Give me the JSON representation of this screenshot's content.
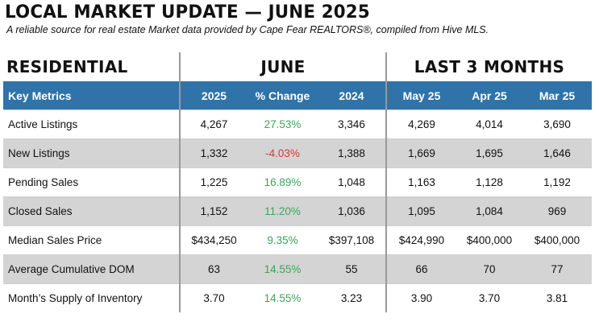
{
  "title": "LOCAL MARKET UPDATE — JUNE 2025",
  "subtitle": "A reliable source for real estate Market data provided by Cape Fear REALTORS®, compiled from Hive MLS.",
  "groups": {
    "residential": "RESIDENTIAL",
    "june": "JUNE",
    "last3": "LAST 3 MONTHS"
  },
  "columns": [
    "Key Metrics",
    "2025",
    "% Change",
    "2024",
    "May 25",
    "Apr 25",
    "Mar 25"
  ],
  "colors": {
    "header_bg": "#2f73a8",
    "positive": "#3ea35a",
    "negative": "#d43a3a",
    "shaded_row": "#d4d4d4"
  },
  "rows": [
    {
      "metric": "Active Listings",
      "y2025": "4,267",
      "change": "27.53%",
      "change_sign": "positive",
      "y2024": "3,346",
      "may": "4,269",
      "apr": "4,014",
      "mar": "3,690"
    },
    {
      "metric": "New Listings",
      "y2025": "1,332",
      "change": "-4.03%",
      "change_sign": "negative",
      "y2024": "1,388",
      "may": "1,669",
      "apr": "1,695",
      "mar": "1,646"
    },
    {
      "metric": "Pending Sales",
      "y2025": "1,225",
      "change": "16.89%",
      "change_sign": "positive",
      "y2024": "1,048",
      "may": "1,163",
      "apr": "1,128",
      "mar": "1,192"
    },
    {
      "metric": "Closed Sales",
      "y2025": "1,152",
      "change": "11.20%",
      "change_sign": "positive",
      "y2024": "1,036",
      "may": "1,095",
      "apr": "1,084",
      "mar": "969"
    },
    {
      "metric": "Median Sales Price",
      "y2025": "$434,250",
      "change": "9.35%",
      "change_sign": "positive",
      "y2024": "$397,108",
      "may": "$424,990",
      "apr": "$400,000",
      "mar": "$400,000"
    },
    {
      "metric": "Average Cumulative DOM",
      "y2025": "63",
      "change": "14.55%",
      "change_sign": "positive",
      "y2024": "55",
      "may": "66",
      "apr": "70",
      "mar": "77"
    },
    {
      "metric": "Month’s Supply of Inventory",
      "y2025": "3.70",
      "change": "14.55%",
      "change_sign": "positive",
      "y2024": "3.23",
      "may": "3.90",
      "apr": "3.70",
      "mar": "3.81"
    }
  ]
}
